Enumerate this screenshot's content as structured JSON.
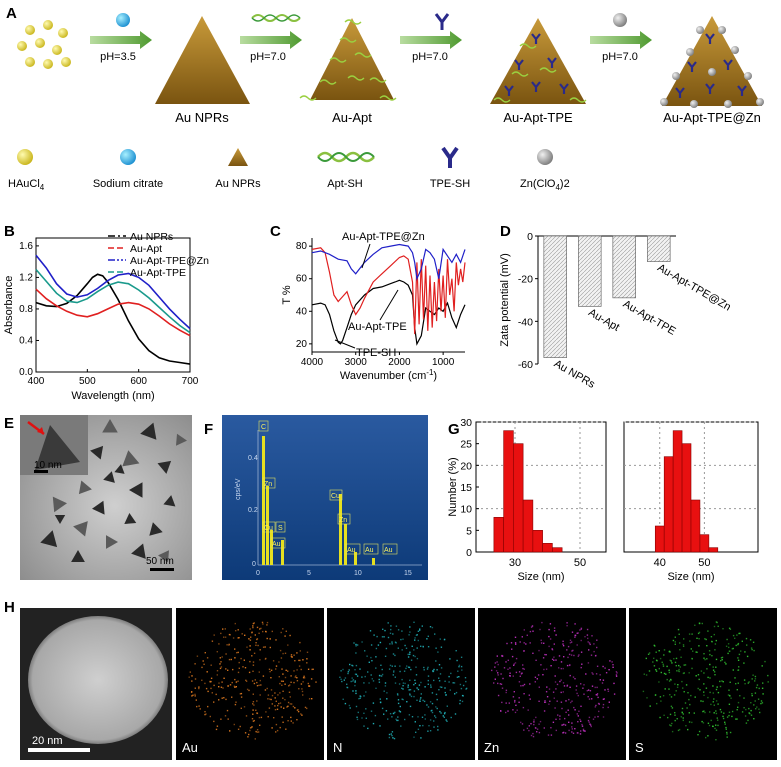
{
  "panel_letters": [
    "A",
    "B",
    "C",
    "D",
    "E",
    "F",
    "G",
    "H"
  ],
  "scheme": {
    "arrows": [
      {
        "label": "pH=3.5"
      },
      {
        "label": "pH=7.0"
      },
      {
        "label": "pH=7.0"
      },
      {
        "label": "pH=7.0"
      }
    ],
    "products": [
      "Au NPRs",
      "Au-Apt",
      "Au-Apt-TPE",
      "Au-Apt-TPE@Zn"
    ],
    "legend": [
      {
        "icon": "yellow-sphere-icon",
        "label": "HAuCl",
        "sub": "4",
        "tail": ""
      },
      {
        "icon": "blue-sphere-icon",
        "label": "Sodium citrate",
        "sub": "",
        "tail": ""
      },
      {
        "icon": "gold-triangle-icon",
        "label": "Au NPRs",
        "sub": "",
        "tail": ""
      },
      {
        "icon": "dna-helix-icon",
        "label": "Apt-SH",
        "sub": "",
        "tail": ""
      },
      {
        "icon": "y-shape-icon",
        "label": "TPE-SH",
        "sub": "",
        "tail": ""
      },
      {
        "icon": "gray-sphere-icon",
        "label": "Zn(ClO",
        "sub": "4",
        "tail": ")2"
      }
    ]
  },
  "chart_data": [
    {
      "panel": "B",
      "type": "line",
      "xlabel": "Wavelength (nm)",
      "ylabel": "Absorbance",
      "xlim": [
        400,
        700
      ],
      "ylim": [
        0,
        1.7
      ],
      "xticks": [
        400,
        500,
        600,
        700
      ],
      "yticks": [
        0.0,
        0.4,
        0.8,
        1.2,
        1.6
      ],
      "legend_position": "top-right",
      "series": [
        {
          "name": "Au NPRs",
          "color": "#000000",
          "dash": "dashdot",
          "x": [
            400,
            420,
            440,
            460,
            480,
            500,
            510,
            520,
            530,
            540,
            560,
            580,
            600,
            620,
            640,
            660,
            680,
            700
          ],
          "y": [
            0.88,
            0.84,
            0.83,
            0.87,
            0.97,
            1.12,
            1.2,
            1.24,
            1.22,
            1.14,
            0.92,
            0.65,
            0.42,
            0.27,
            0.18,
            0.14,
            0.12,
            0.1
          ]
        },
        {
          "name": "Au-Apt",
          "color": "#e02020",
          "dash": "dash",
          "x": [
            400,
            420,
            440,
            460,
            480,
            500,
            520,
            540,
            560,
            580,
            600,
            620,
            640,
            660,
            680,
            700
          ],
          "y": [
            1.05,
            0.93,
            0.84,
            0.77,
            0.72,
            0.7,
            0.74,
            0.8,
            0.86,
            0.88,
            0.86,
            0.8,
            0.71,
            0.61,
            0.53,
            0.46
          ]
        },
        {
          "name": "Au-Apt-TPE@Zn",
          "color": "#2020c8",
          "dash": "dashdotdot",
          "x": [
            400,
            420,
            440,
            460,
            480,
            500,
            520,
            540,
            560,
            580,
            600,
            620,
            640,
            660,
            680,
            700
          ],
          "y": [
            1.48,
            1.32,
            1.12,
            0.99,
            0.95,
            0.98,
            1.06,
            1.16,
            1.23,
            1.25,
            1.2,
            1.1,
            0.95,
            0.8,
            0.67,
            0.55
          ]
        },
        {
          "name": "Au-Apt-TPE",
          "color": "#1a9a8c",
          "dash": "dash",
          "x": [
            400,
            420,
            440,
            460,
            480,
            500,
            520,
            540,
            560,
            580,
            600,
            620,
            640,
            660,
            680,
            700
          ],
          "y": [
            1.3,
            1.15,
            1.0,
            0.9,
            0.88,
            0.93,
            1.02,
            1.1,
            1.14,
            1.12,
            1.04,
            0.94,
            0.82,
            0.7,
            0.59,
            0.5
          ]
        }
      ]
    },
    {
      "panel": "C",
      "type": "line",
      "xlabel": "Wavenumber (cm-1)",
      "ylabel": "T %",
      "xlim": [
        4000,
        500
      ],
      "ylim": [
        15,
        85
      ],
      "xticks": [
        4000,
        3000,
        2000,
        1000
      ],
      "yticks": [
        20,
        40,
        60,
        80
      ],
      "annotations": [
        "Au-Apt-TPE@Zn",
        "Au-Apt-TPE",
        "TPE-SH"
      ],
      "series": [
        {
          "name": "TPE-SH",
          "color": "#000000",
          "x": [
            4000,
            3800,
            3700,
            3600,
            3500,
            3400,
            3350,
            3300,
            3200,
            3100,
            3000,
            2800,
            2600,
            2400,
            2200,
            2100,
            2000,
            1900,
            1800,
            1700,
            1650,
            1600,
            1500,
            1400,
            1300,
            1200,
            1100,
            1000,
            900,
            800,
            700,
            600,
            500
          ],
          "y": [
            44,
            45,
            44,
            38,
            28,
            21,
            20,
            22,
            30,
            38,
            44,
            50,
            54,
            55,
            57,
            58,
            59,
            58,
            56,
            50,
            30,
            20,
            25,
            42,
            40,
            38,
            42,
            40,
            45,
            36,
            30,
            38,
            44
          ]
        },
        {
          "name": "Au-Apt-TPE",
          "color": "#e02020",
          "x": [
            4000,
            3800,
            3700,
            3600,
            3500,
            3400,
            3300,
            3200,
            3100,
            3000,
            2900,
            2800,
            2600,
            2400,
            2200,
            2000,
            1900,
            1800,
            1700,
            1650,
            1600,
            1550,
            1500,
            1450,
            1400,
            1350,
            1300,
            1250,
            1200,
            1150,
            1100,
            1050,
            1000,
            950,
            900,
            850,
            800,
            750,
            700,
            650,
            600,
            550,
            500
          ],
          "y": [
            78,
            79,
            76,
            64,
            50,
            46,
            49,
            52,
            44,
            38,
            42,
            48,
            58,
            63,
            68,
            73,
            74,
            72,
            58,
            26,
            70,
            32,
            72,
            35,
            68,
            28,
            62,
            30,
            58,
            34,
            66,
            40,
            62,
            36,
            72,
            50,
            60,
            40,
            70,
            56,
            66,
            58,
            70
          ]
        },
        {
          "name": "Au-Apt-TPE@Zn",
          "color": "#2020c8",
          "x": [
            4000,
            3800,
            3600,
            3400,
            3200,
            3100,
            3000,
            2800,
            2600,
            2400,
            2200,
            2000,
            1800,
            1700,
            1650,
            1600,
            1500,
            1400,
            1300,
            1200,
            1100,
            1000,
            900,
            800,
            700,
            600,
            500
          ],
          "y": [
            76,
            77,
            75,
            72,
            71,
            66,
            63,
            70,
            75,
            79,
            80,
            81,
            80,
            76,
            70,
            60,
            66,
            78,
            76,
            72,
            60,
            78,
            74,
            70,
            75,
            70,
            78
          ]
        }
      ]
    },
    {
      "panel": "D",
      "type": "bar",
      "ylabel": "Zata potential (mV)",
      "ylim": [
        -60,
        0
      ],
      "yticks": [
        0,
        -20,
        -40,
        -60
      ],
      "categories": [
        "Au NPRs",
        "Au-Apt",
        "Au-Apt-TPE",
        "Au-Apt-TPE@Zn"
      ],
      "values": [
        -57,
        -33,
        -29,
        -12
      ]
    },
    {
      "panel": "G",
      "type": "bar",
      "xlabel": "Size (nm)",
      "ylabel": "Number (%)",
      "xlim": [
        18,
        58
      ],
      "ylim": [
        0,
        30
      ],
      "xticks": [
        30,
        50
      ],
      "yticks": [
        0,
        5,
        10,
        15,
        20,
        25,
        30
      ],
      "bin_width": 3,
      "bins": [
        25,
        28,
        31,
        34,
        37,
        40,
        43
      ],
      "values": [
        8,
        28,
        25,
        12,
        5,
        2,
        1
      ]
    },
    {
      "panel": "G-right",
      "type": "bar",
      "xlabel": "Size (nm)",
      "xlim": [
        32,
        62
      ],
      "ylim": [
        0,
        30
      ],
      "xticks": [
        40,
        50
      ],
      "bin_width": 2,
      "bins": [
        40,
        42,
        44,
        46,
        48,
        50,
        52
      ],
      "values": [
        6,
        22,
        28,
        25,
        12,
        4,
        1
      ]
    }
  ],
  "tem": {
    "inset_scale": "10 nm",
    "scale": "50 nm"
  },
  "edx": {
    "ylabel": "cps/eV",
    "yticks": [
      "0.4",
      "0.2",
      "0"
    ],
    "xticks": [
      "0",
      "5",
      "10",
      "15"
    ],
    "peak_labels": [
      "C",
      "Zn",
      "Cu",
      "S",
      "Au",
      "Cu",
      "Zn",
      "Au",
      "Au",
      "Au"
    ]
  },
  "mapping": {
    "scale": "20 nm",
    "channels": [
      {
        "element": "Au",
        "color": "#e07a20"
      },
      {
        "element": "N",
        "color": "#20b0b8"
      },
      {
        "element": "Zn",
        "color": "#c030c0"
      },
      {
        "element": "S",
        "color": "#30c030"
      }
    ]
  }
}
